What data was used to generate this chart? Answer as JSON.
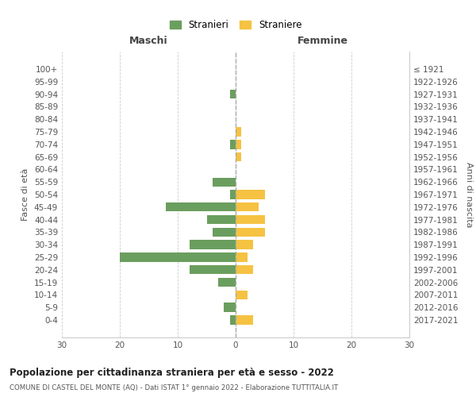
{
  "age_groups": [
    "100+",
    "95-99",
    "90-94",
    "85-89",
    "80-84",
    "75-79",
    "70-74",
    "65-69",
    "60-64",
    "55-59",
    "50-54",
    "45-49",
    "40-44",
    "35-39",
    "30-34",
    "25-29",
    "20-24",
    "15-19",
    "10-14",
    "5-9",
    "0-4"
  ],
  "birth_years": [
    "≤ 1921",
    "1922-1926",
    "1927-1931",
    "1932-1936",
    "1937-1941",
    "1942-1946",
    "1947-1951",
    "1952-1956",
    "1957-1961",
    "1962-1966",
    "1967-1971",
    "1972-1976",
    "1977-1981",
    "1982-1986",
    "1987-1991",
    "1992-1996",
    "1997-2001",
    "2002-2006",
    "2007-2011",
    "2012-2016",
    "2017-2021"
  ],
  "males": [
    0,
    0,
    1,
    0,
    0,
    0,
    1,
    0,
    0,
    4,
    1,
    12,
    5,
    4,
    8,
    20,
    8,
    3,
    0,
    2,
    1
  ],
  "females": [
    0,
    0,
    0,
    0,
    0,
    1,
    1,
    1,
    0,
    0,
    5,
    4,
    5,
    5,
    3,
    2,
    3,
    0,
    2,
    0,
    3
  ],
  "male_color": "#6a9e5e",
  "female_color": "#f5c242",
  "male_label": "Stranieri",
  "female_label": "Straniere",
  "title": "Popolazione per cittadinanza straniera per età e sesso - 2022",
  "subtitle": "COMUNE DI CASTEL DEL MONTE (AQ) - Dati ISTAT 1° gennaio 2022 - Elaborazione TUTTITALIA.IT",
  "xlabel_left": "Maschi",
  "xlabel_right": "Femmine",
  "ylabel_left": "Fasce di età",
  "ylabel_right": "Anni di nascita",
  "xlim": 30,
  "background_color": "#ffffff",
  "grid_color": "#cccccc"
}
